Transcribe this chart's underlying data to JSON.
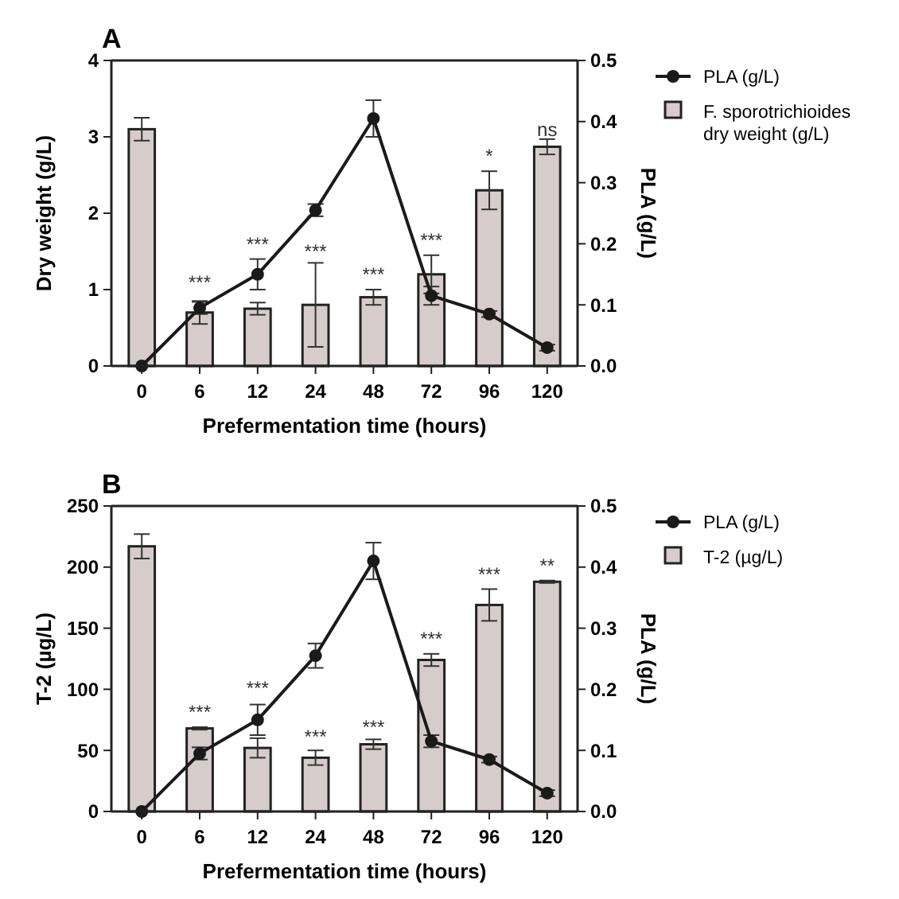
{
  "chart_data": [
    {
      "type": "bar",
      "title": "A",
      "xlabel": "Prefermentation time (hours)",
      "ylabel": "Dry weight (g/L)",
      "y2label": "PLA (g/L)",
      "categories": [
        "0",
        "6",
        "12",
        "24",
        "48",
        "72",
        "96",
        "120"
      ],
      "ylim": [
        0,
        4
      ],
      "yticks": [
        0,
        1,
        2,
        3,
        4
      ],
      "y2lim": [
        0,
        0.5
      ],
      "y2ticks": [
        {
          "value": 0,
          "label": "0.0"
        },
        0.1,
        0.2,
        0.3,
        0.4,
        0.5
      ],
      "legend": "top right",
      "marker": "circle",
      "series": [
        {
          "name": "F. sporotrichioides dry weight (g/L)",
          "color": "#d6cccc",
          "values": [
            3.1,
            0.7,
            0.75,
            0.8,
            0.9,
            1.2,
            2.3,
            2.87
          ],
          "errors": [
            0.15,
            0.15,
            0.08,
            0.55,
            0.1,
            0.25,
            0.25,
            0.1
          ]
        },
        {
          "type": "line",
          "name": "PLA (g/L)",
          "color": "#1a1a1a",
          "axis": "y2",
          "values": [
            0,
            0.095,
            0.15,
            0.255,
            0.405,
            0.115,
            0.085,
            0.03
          ],
          "errors": [
            0,
            0.01,
            0.025,
            0.01,
            0.03,
            0.015,
            0.005,
            0.005
          ]
        }
      ],
      "annotations": [
        {
          "text": "***",
          "x": "6",
          "y": 0.95
        },
        {
          "text": "***",
          "x": "12",
          "y": 1.45
        },
        {
          "text": "***",
          "x": "24",
          "y": 1.35
        },
        {
          "text": "***",
          "x": "48",
          "y": 1.05
        },
        {
          "text": "***",
          "x": "72",
          "y": 1.5
        },
        {
          "text": "*",
          "x": "96",
          "y": 2.6
        },
        {
          "text": "ns",
          "x": "120",
          "y": 2.95
        }
      ]
    },
    {
      "type": "bar",
      "title": "B",
      "xlabel": "Prefermentation time (hours)",
      "ylabel": "T-2 (µg/L)",
      "y2label": "PLA (g/L)",
      "categories": [
        "0",
        "6",
        "12",
        "24",
        "48",
        "72",
        "96",
        "120"
      ],
      "ylim": [
        0,
        250
      ],
      "yticks": [
        0,
        50,
        100,
        150,
        200,
        250
      ],
      "y2lim": [
        0,
        0.5
      ],
      "y2ticks": [
        {
          "value": 0,
          "label": "0.0"
        },
        0.1,
        0.2,
        0.3,
        0.4,
        0.5
      ],
      "legend": "top right",
      "marker": "circle",
      "series": [
        {
          "name": "T-2 (µg/L)",
          "color": "#d6cccc",
          "values": [
            217,
            68,
            52,
            44,
            55,
            124,
            169,
            188
          ],
          "errors": [
            10,
            1,
            8,
            6,
            4,
            5,
            13,
            1
          ]
        },
        {
          "type": "line",
          "name": "PLA (g/L)",
          "color": "#1a1a1a",
          "axis": "y2",
          "values": [
            0,
            0.095,
            0.15,
            0.255,
            0.41,
            0.115,
            0.085,
            0.03
          ],
          "errors": [
            0,
            0.01,
            0.025,
            0.02,
            0.03,
            0.01,
            0.005,
            0.005
          ]
        }
      ],
      "annotations": [
        {
          "text": "***",
          "x": "6",
          "y": 72
        },
        {
          "text": "***",
          "x": "12",
          "y": 92
        },
        {
          "text": "***",
          "x": "24",
          "y": 52
        },
        {
          "text": "***",
          "x": "48",
          "y": 60
        },
        {
          "text": "***",
          "x": "72",
          "y": 132
        },
        {
          "text": "***",
          "x": "96",
          "y": 185
        },
        {
          "text": "**",
          "x": "120",
          "y": 192
        }
      ]
    }
  ]
}
